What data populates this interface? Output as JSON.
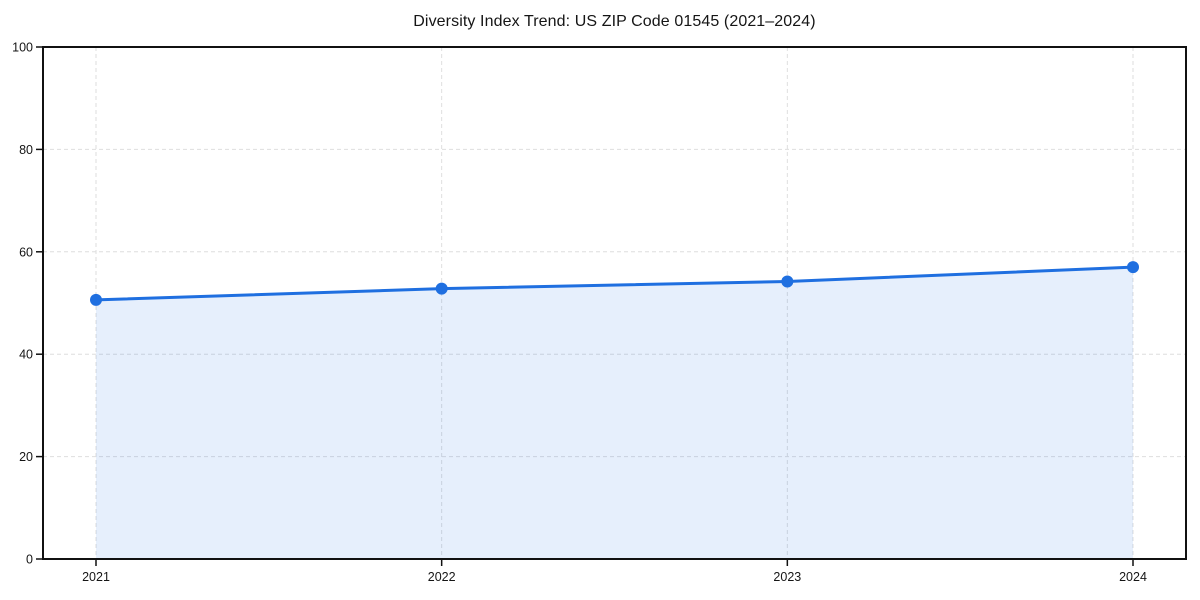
{
  "chart_data": {
    "type": "line",
    "title": "Diversity Index Trend: US ZIP Code 01545 (2021–2024)",
    "categories": [
      "2021",
      "2022",
      "2023",
      "2024"
    ],
    "series": [
      {
        "name": "Diversity Index",
        "values": [
          50.6,
          52.8,
          54.2,
          57.0
        ]
      }
    ],
    "xlabel": "",
    "ylabel": "",
    "ylim": [
      0,
      100
    ],
    "yticks": [
      0,
      20,
      40,
      60,
      80,
      100
    ],
    "legend_position": "none",
    "grid": {
      "visible": true,
      "style": "dashed",
      "color": "#dedede",
      "axes": "both"
    },
    "area_fill": true,
    "marker": "circle",
    "colors": {
      "line": "#1f6fe0",
      "marker": "#1f6fe0",
      "area": "rgba(31,111,224,0.11)",
      "spine": "#111111",
      "background": "#ffffff"
    }
  }
}
